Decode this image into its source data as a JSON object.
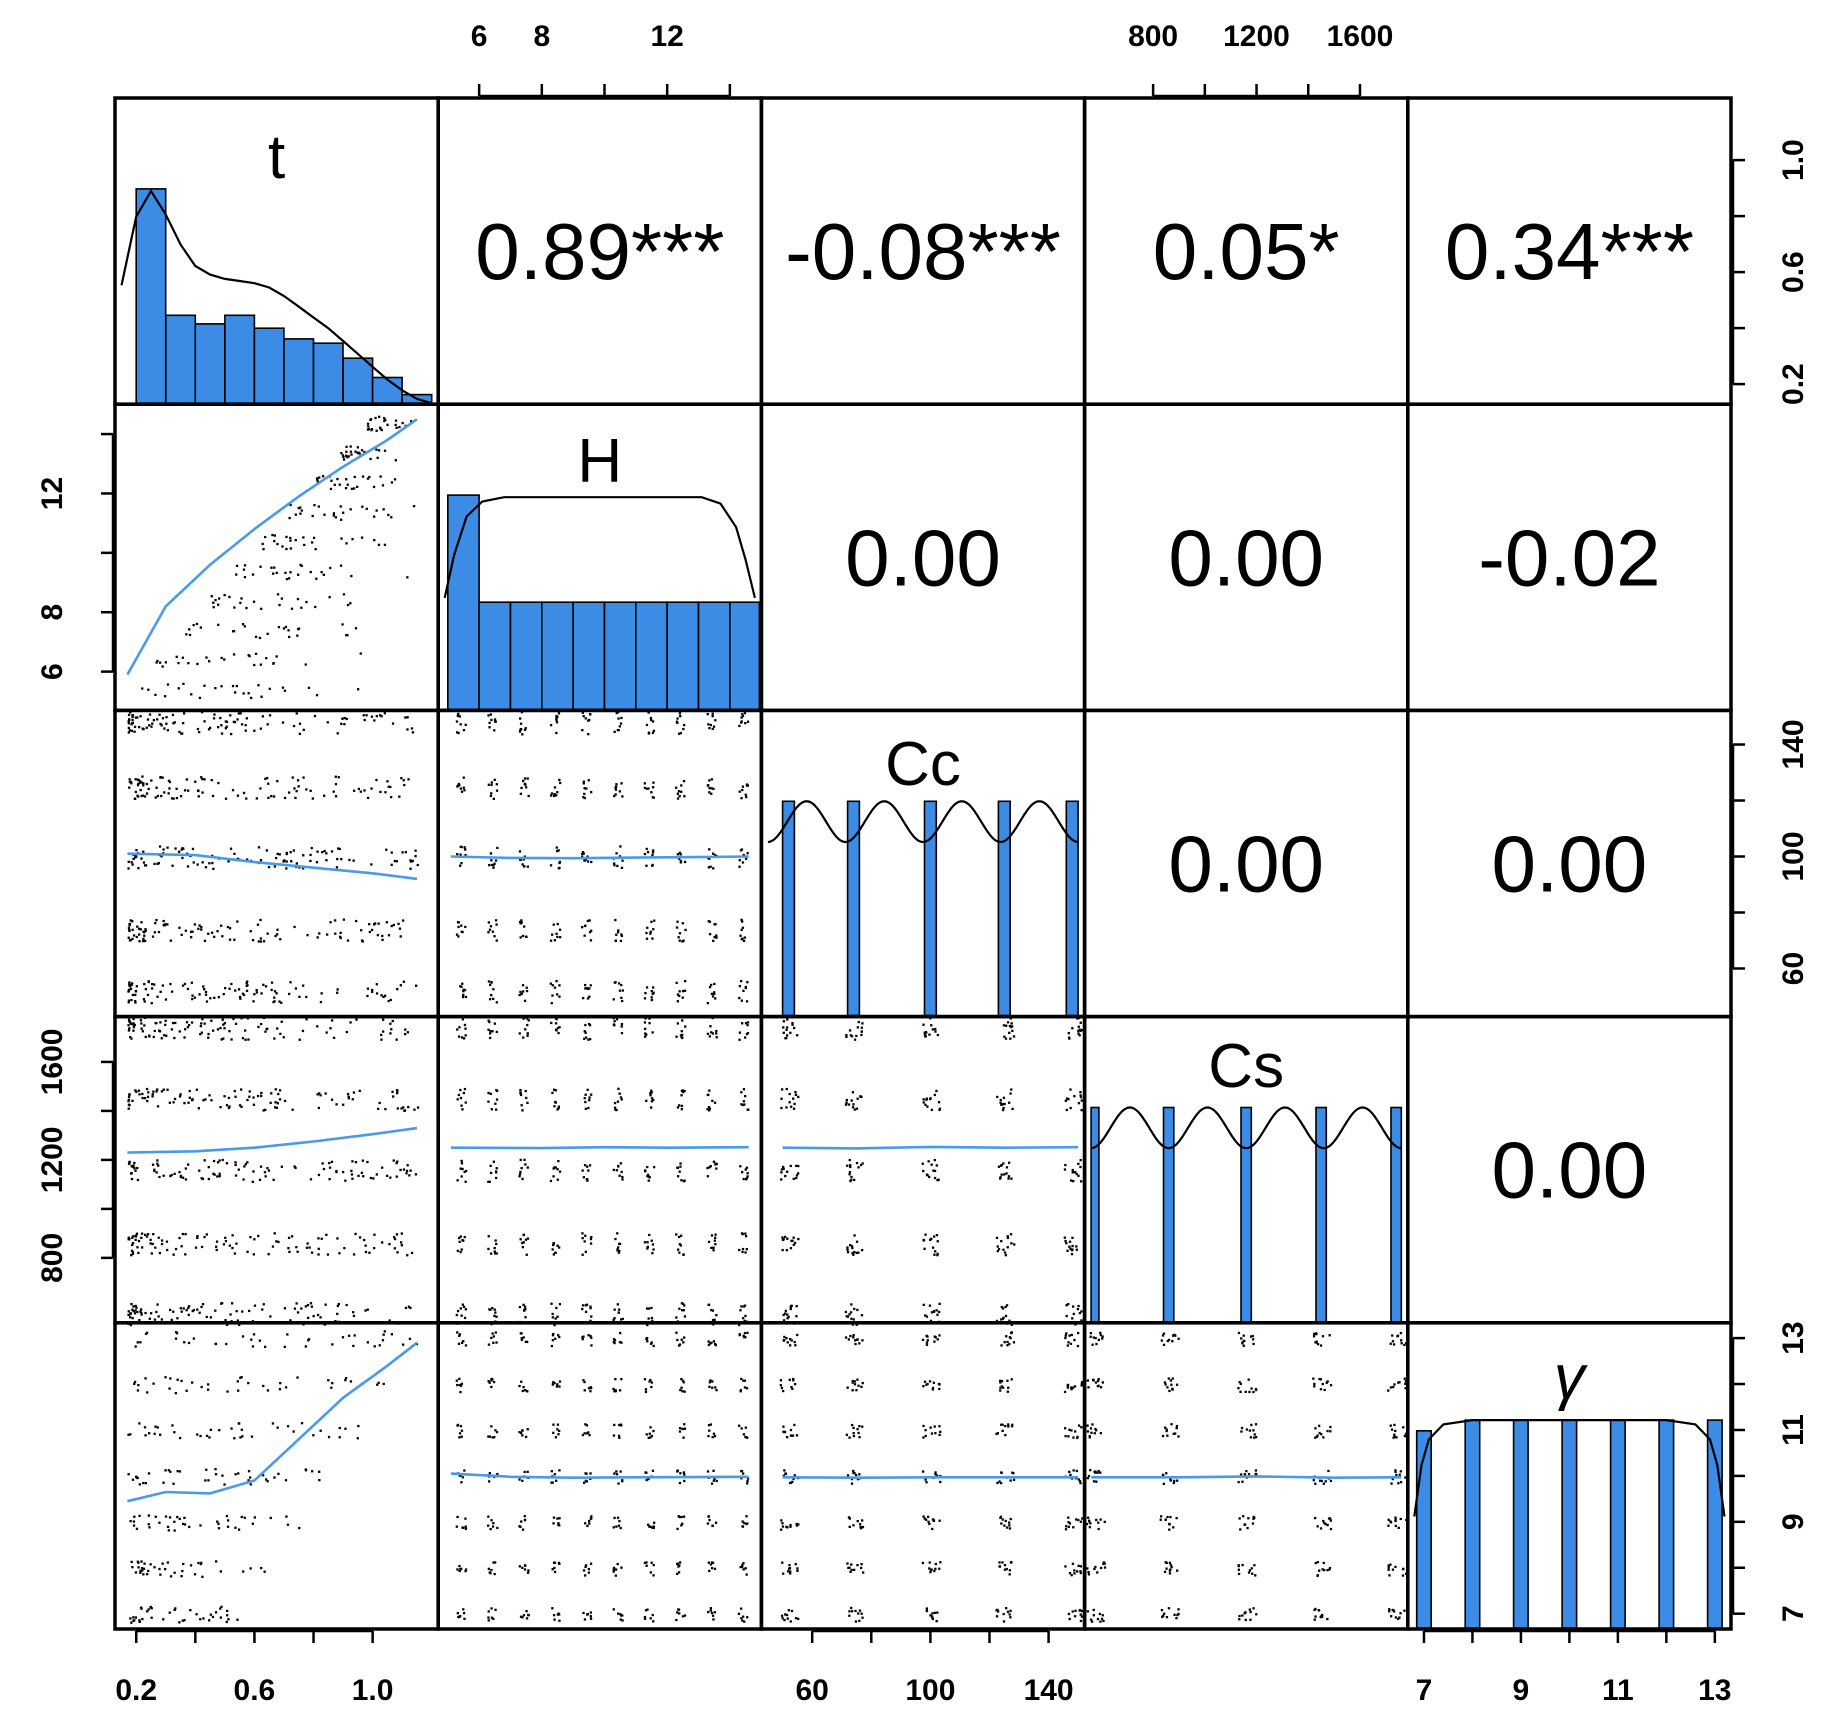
{
  "colors": {
    "bar_fill": "#3c8ce6",
    "smooth_line": "#4a9aea",
    "point_color": "#000000",
    "density_line": "#000000",
    "frame": "#000000"
  },
  "chart_data": {
    "type": "scatter-matrix",
    "title": "",
    "variables": [
      "t",
      "H",
      "Cc",
      "Cs",
      "γ"
    ],
    "ranges": [
      [
        0.15,
        1.2
      ],
      [
        4.9,
        14.8
      ],
      [
        45,
        150
      ],
      [
        560,
        1760
      ],
      [
        6.8,
        13.2
      ]
    ],
    "axis_ticks": {
      "top": [
        {
          "var": 1,
          "values": [
            6,
            8,
            12
          ],
          "ticks": [
            6,
            8,
            10,
            12,
            14
          ]
        },
        {
          "var": 3,
          "values": [
            800,
            1200,
            1600
          ],
          "ticks": [
            800,
            1000,
            1200,
            1400,
            1600
          ]
        }
      ],
      "bottom": [
        {
          "var": 0,
          "values": [
            0.2,
            0.6,
            1.0
          ],
          "ticks": [
            0.2,
            0.4,
            0.6,
            0.8,
            1.0
          ]
        },
        {
          "var": 2,
          "values": [
            60,
            100,
            140
          ],
          "ticks": [
            60,
            80,
            100,
            120,
            140
          ]
        },
        {
          "var": 4,
          "values": [
            7,
            9,
            11,
            13
          ],
          "ticks": [
            7,
            8,
            9,
            10,
            11,
            12,
            13
          ]
        }
      ],
      "left": [
        {
          "var": 1,
          "values": [
            6,
            8,
            12
          ],
          "ticks": [
            6,
            8,
            10,
            12,
            14
          ]
        },
        {
          "var": 3,
          "values": [
            800,
            1200,
            1600
          ],
          "ticks": [
            800,
            1000,
            1200,
            1400,
            1600
          ]
        }
      ],
      "right": [
        {
          "var": 0,
          "values": [
            0.2,
            0.6,
            1.0
          ],
          "ticks": [
            0.2,
            0.4,
            0.6,
            0.8,
            1.0
          ]
        },
        {
          "var": 2,
          "values": [
            60,
            100,
            140
          ],
          "ticks": [
            60,
            80,
            100,
            120,
            140
          ]
        },
        {
          "var": 4,
          "values": [
            7,
            9,
            11,
            13
          ],
          "ticks": [
            7,
            8,
            9,
            10,
            11,
            12,
            13
          ]
        }
      ]
    },
    "correlations": [
      {
        "row": 0,
        "col": 1,
        "label": "0.89***"
      },
      {
        "row": 0,
        "col": 2,
        "label": "-0.08***"
      },
      {
        "row": 0,
        "col": 3,
        "label": "0.05*"
      },
      {
        "row": 0,
        "col": 4,
        "label": "0.34***"
      },
      {
        "row": 1,
        "col": 2,
        "label": "0.00"
      },
      {
        "row": 1,
        "col": 3,
        "label": "0.00"
      },
      {
        "row": 1,
        "col": 4,
        "label": "-0.02"
      },
      {
        "row": 2,
        "col": 3,
        "label": "0.00"
      },
      {
        "row": 2,
        "col": 4,
        "label": "0.00"
      },
      {
        "row": 3,
        "col": 4,
        "label": "0.00"
      }
    ],
    "histograms": [
      {
        "var": "t",
        "bins": [
          [
            0.2,
            0.3
          ],
          [
            0.3,
            0.4
          ],
          [
            0.4,
            0.5
          ],
          [
            0.5,
            0.6
          ],
          [
            0.6,
            0.7
          ],
          [
            0.7,
            0.8
          ],
          [
            0.8,
            0.9
          ],
          [
            0.9,
            1.0
          ],
          [
            1.0,
            1.1
          ],
          [
            1.1,
            1.2
          ]
        ],
        "heights": [
          1.0,
          0.41,
          0.37,
          0.41,
          0.35,
          0.3,
          0.28,
          0.21,
          0.12,
          0.04
        ],
        "density": [
          [
            0.15,
            0.55
          ],
          [
            0.2,
            0.87
          ],
          [
            0.25,
            0.99
          ],
          [
            0.3,
            0.88
          ],
          [
            0.35,
            0.74
          ],
          [
            0.4,
            0.64
          ],
          [
            0.45,
            0.6
          ],
          [
            0.5,
            0.58
          ],
          [
            0.55,
            0.57
          ],
          [
            0.6,
            0.56
          ],
          [
            0.65,
            0.54
          ],
          [
            0.7,
            0.5
          ],
          [
            0.75,
            0.45
          ],
          [
            0.8,
            0.4
          ],
          [
            0.85,
            0.35
          ],
          [
            0.9,
            0.29
          ],
          [
            0.95,
            0.23
          ],
          [
            1.0,
            0.17
          ],
          [
            1.05,
            0.11
          ],
          [
            1.1,
            0.06
          ],
          [
            1.15,
            0.02
          ],
          [
            1.2,
            0.0
          ]
        ]
      },
      {
        "var": "H",
        "bins": [
          [
            5,
            6
          ],
          [
            6,
            7
          ],
          [
            7,
            8
          ],
          [
            8,
            9
          ],
          [
            9,
            10
          ],
          [
            10,
            11
          ],
          [
            11,
            12
          ],
          [
            12,
            13
          ],
          [
            13,
            14
          ],
          [
            14,
            15
          ]
        ],
        "heights": [
          1.0,
          0.5,
          0.5,
          0.5,
          0.5,
          0.5,
          0.5,
          0.5,
          0.5,
          0.5
        ],
        "density": [
          [
            4.9,
            0.52
          ],
          [
            5.2,
            0.72
          ],
          [
            5.6,
            0.9
          ],
          [
            6.1,
            0.97
          ],
          [
            6.8,
            0.99
          ],
          [
            10,
            0.99
          ],
          [
            13.1,
            0.99
          ],
          [
            13.7,
            0.96
          ],
          [
            14.2,
            0.85
          ],
          [
            14.5,
            0.7
          ],
          [
            14.8,
            0.52
          ]
        ]
      },
      {
        "var": "Cc",
        "bins": [
          [
            50,
            54
          ],
          [
            72,
            76
          ],
          [
            98,
            102
          ],
          [
            123,
            127
          ],
          [
            146,
            150
          ]
        ],
        "heights": [
          1,
          1,
          1,
          1,
          1
        ],
        "density": "wave"
      },
      {
        "var": "Cs",
        "bins": [
          [
            560,
            590
          ],
          [
            840,
            880
          ],
          [
            1140,
            1180
          ],
          [
            1430,
            1470
          ],
          [
            1720,
            1760
          ]
        ],
        "heights": [
          1,
          1,
          1,
          1,
          1
        ],
        "density": "wave"
      },
      {
        "var": "γ",
        "bins": [
          [
            6.85,
            7.15
          ],
          [
            7.85,
            8.15
          ],
          [
            8.85,
            9.15
          ],
          [
            9.85,
            10.15
          ],
          [
            10.85,
            11.15
          ],
          [
            11.85,
            12.15
          ],
          [
            12.85,
            13.15
          ]
        ],
        "heights": [
          0.92,
          0.97,
          0.97,
          0.97,
          0.97,
          0.97,
          0.97
        ],
        "density": [
          [
            6.8,
            0.52
          ],
          [
            6.95,
            0.76
          ],
          [
            7.1,
            0.88
          ],
          [
            7.4,
            0.95
          ],
          [
            8.0,
            0.97
          ],
          [
            12.0,
            0.97
          ],
          [
            12.6,
            0.95
          ],
          [
            12.9,
            0.88
          ],
          [
            13.05,
            0.76
          ],
          [
            13.2,
            0.52
          ]
        ]
      }
    ],
    "smooth_lines": [
      {
        "row": 1,
        "col": 0,
        "points": [
          [
            0.17,
            5.9
          ],
          [
            0.3,
            8.2
          ],
          [
            0.45,
            9.6
          ],
          [
            0.6,
            10.8
          ],
          [
            0.75,
            11.9
          ],
          [
            0.9,
            12.9
          ],
          [
            1.05,
            13.8
          ],
          [
            1.15,
            14.5
          ]
        ]
      },
      {
        "row": 2,
        "col": 0,
        "points": [
          [
            0.17,
            101
          ],
          [
            0.4,
            100.5
          ],
          [
            0.6,
            98
          ],
          [
            0.8,
            96
          ],
          [
            1.0,
            94
          ],
          [
            1.15,
            92
          ]
        ]
      },
      {
        "row": 2,
        "col": 1,
        "points": [
          [
            5.1,
            100
          ],
          [
            7,
            99.5
          ],
          [
            9,
            99.4
          ],
          [
            11,
            99.6
          ],
          [
            13,
            99.8
          ],
          [
            14.6,
            100
          ]
        ]
      },
      {
        "row": 3,
        "col": 0,
        "points": [
          [
            0.17,
            1230
          ],
          [
            0.4,
            1235
          ],
          [
            0.6,
            1250
          ],
          [
            0.8,
            1275
          ],
          [
            1.0,
            1305
          ],
          [
            1.15,
            1330
          ]
        ]
      },
      {
        "row": 3,
        "col": 1,
        "points": [
          [
            5.1,
            1250
          ],
          [
            8,
            1248
          ],
          [
            10,
            1252
          ],
          [
            12,
            1250
          ],
          [
            14.6,
            1252
          ]
        ]
      },
      {
        "row": 3,
        "col": 2,
        "points": [
          [
            50,
            1250
          ],
          [
            75,
            1247
          ],
          [
            100,
            1253
          ],
          [
            125,
            1250
          ],
          [
            150,
            1252
          ]
        ]
      },
      {
        "row": 4,
        "col": 0,
        "points": [
          [
            0.17,
            9.45
          ],
          [
            0.3,
            9.65
          ],
          [
            0.45,
            9.62
          ],
          [
            0.6,
            9.9
          ],
          [
            0.75,
            10.8
          ],
          [
            0.9,
            11.7
          ],
          [
            1.05,
            12.4
          ],
          [
            1.15,
            12.9
          ]
        ]
      },
      {
        "row": 4,
        "col": 1,
        "points": [
          [
            5.1,
            10.05
          ],
          [
            7,
            9.98
          ],
          [
            9,
            9.96
          ],
          [
            11,
            9.97
          ],
          [
            14.6,
            9.98
          ]
        ]
      },
      {
        "row": 4,
        "col": 2,
        "points": [
          [
            50,
            9.97
          ],
          [
            75,
            9.96
          ],
          [
            100,
            9.97
          ],
          [
            125,
            9.97
          ],
          [
            150,
            9.97
          ]
        ]
      },
      {
        "row": 4,
        "col": 3,
        "points": [
          [
            560,
            9.97
          ],
          [
            900,
            9.97
          ],
          [
            1200,
            9.99
          ],
          [
            1500,
            9.96
          ],
          [
            1760,
            9.97
          ]
        ]
      }
    ]
  }
}
